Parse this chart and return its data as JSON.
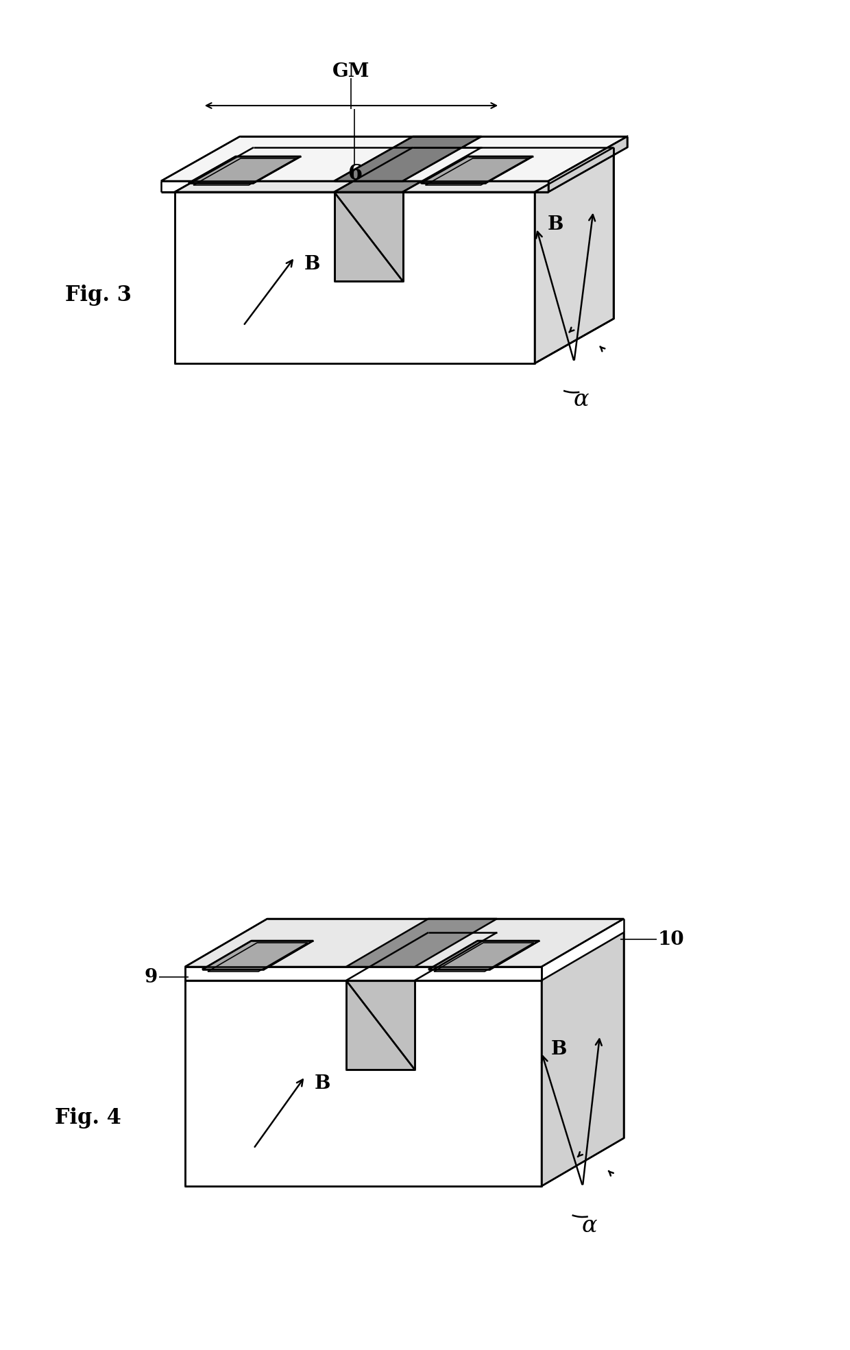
{
  "bg_color": "#ffffff",
  "line_color": "#000000",
  "fig3_label": "Fig. 3",
  "fig4_label": "Fig. 4",
  "label_6": "6",
  "label_GM": "GM",
  "label_B": "B",
  "label_alpha": "α",
  "label_9": "9",
  "label_10": "10",
  "font_size_fig": 20,
  "font_size_label": 18,
  "font_size_number": 18,
  "lw": 1.8
}
